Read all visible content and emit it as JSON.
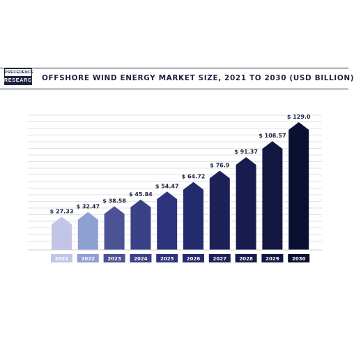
{
  "brand": {
    "logo_line1": "PRECEDENCE",
    "logo_line2": "RESEARCH"
  },
  "colors": {
    "bars": [
      "#c3c5e8",
      "#8e9fd2",
      "#4b5394",
      "#3a4187",
      "#2d347c",
      "#222b6d",
      "#1c2158",
      "#171b4d",
      "#121641",
      "#0b1033"
    ],
    "frame": "#1f2340",
    "grid": "#d9d9d9"
  },
  "chart_data": {
    "type": "bar",
    "title": "OFFSHORE WIND ENERGY MARKET SIZE, 2021 TO 2030 (USD BILLION)",
    "xlabel": "",
    "ylabel": "",
    "categories": [
      "2021",
      "2022",
      "2023",
      "2024",
      "2025",
      "2026",
      "2027",
      "2028",
      "2029",
      "2030"
    ],
    "values": [
      27.33,
      32.47,
      38.58,
      45.84,
      54.47,
      64.72,
      76.9,
      91.37,
      108.57,
      129.0
    ],
    "labels": [
      "$ 27.33",
      "$ 32.47",
      "$ 38.58",
      "$ 45.84",
      "$ 54.47",
      "$ 64.72",
      "$ 76.9",
      "$ 91.37",
      "$ 108.57",
      "$ 129.0"
    ],
    "ylim": [
      0,
      129.0
    ],
    "grid": true,
    "legend": "none"
  }
}
